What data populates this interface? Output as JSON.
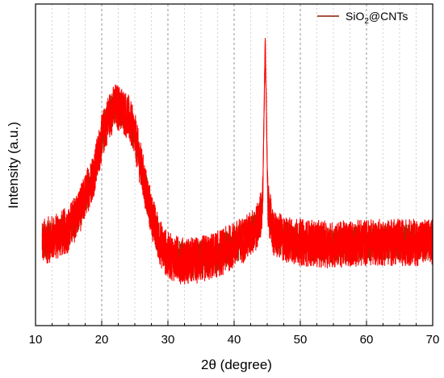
{
  "chart_data": {
    "type": "line",
    "xlabel": "2θ (degree)",
    "ylabel": "Intensity (a.u.)",
    "xlim": [
      10,
      70
    ],
    "x_ticks": [
      10,
      20,
      30,
      40,
      50,
      60,
      70
    ],
    "x_tick_labels": [
      "10",
      "20",
      "30",
      "40",
      "50",
      "60",
      "70"
    ],
    "y_ticks_shown": false,
    "grid": "vertical dashed",
    "legend_position": "top-right",
    "legend": {
      "label_main": "SiO",
      "label_sub": "2",
      "label_rest": "@CNTs"
    },
    "series": [
      {
        "name": "SiO2@CNTs",
        "color": "#ff0000",
        "points": [
          [
            11,
            0.22
          ],
          [
            13,
            0.24
          ],
          [
            15,
            0.27
          ],
          [
            17,
            0.36
          ],
          [
            19,
            0.5
          ],
          [
            20,
            0.62
          ],
          [
            21,
            0.7
          ],
          [
            22,
            0.74
          ],
          [
            23,
            0.73
          ],
          [
            24,
            0.7
          ],
          [
            25,
            0.63
          ],
          [
            26,
            0.5
          ],
          [
            27,
            0.38
          ],
          [
            28,
            0.28
          ],
          [
            29,
            0.21
          ],
          [
            30,
            0.17
          ],
          [
            32,
            0.15
          ],
          [
            34,
            0.15
          ],
          [
            36,
            0.16
          ],
          [
            38,
            0.18
          ],
          [
            40,
            0.21
          ],
          [
            42,
            0.24
          ],
          [
            43.5,
            0.28
          ],
          [
            44.3,
            0.36
          ],
          [
            44.7,
            1.0
          ],
          [
            45.1,
            0.36
          ],
          [
            46,
            0.25
          ],
          [
            48,
            0.23
          ],
          [
            50,
            0.22
          ],
          [
            55,
            0.21
          ],
          [
            60,
            0.22
          ],
          [
            65,
            0.22
          ],
          [
            70,
            0.22
          ]
        ]
      }
    ]
  }
}
